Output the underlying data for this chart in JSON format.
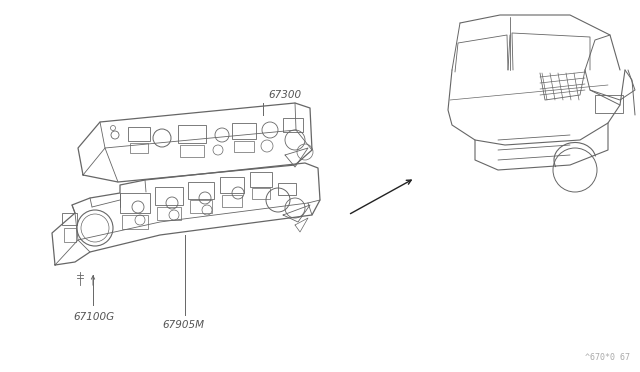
{
  "bg_color": "#ffffff",
  "line_color": "#666666",
  "text_color": "#555555",
  "label_67300": "67300",
  "label_67100G": "67100G",
  "label_67905M": "67905M",
  "watermark": "^670*0 67",
  "fig_width": 6.4,
  "fig_height": 3.72,
  "dpi": 100
}
